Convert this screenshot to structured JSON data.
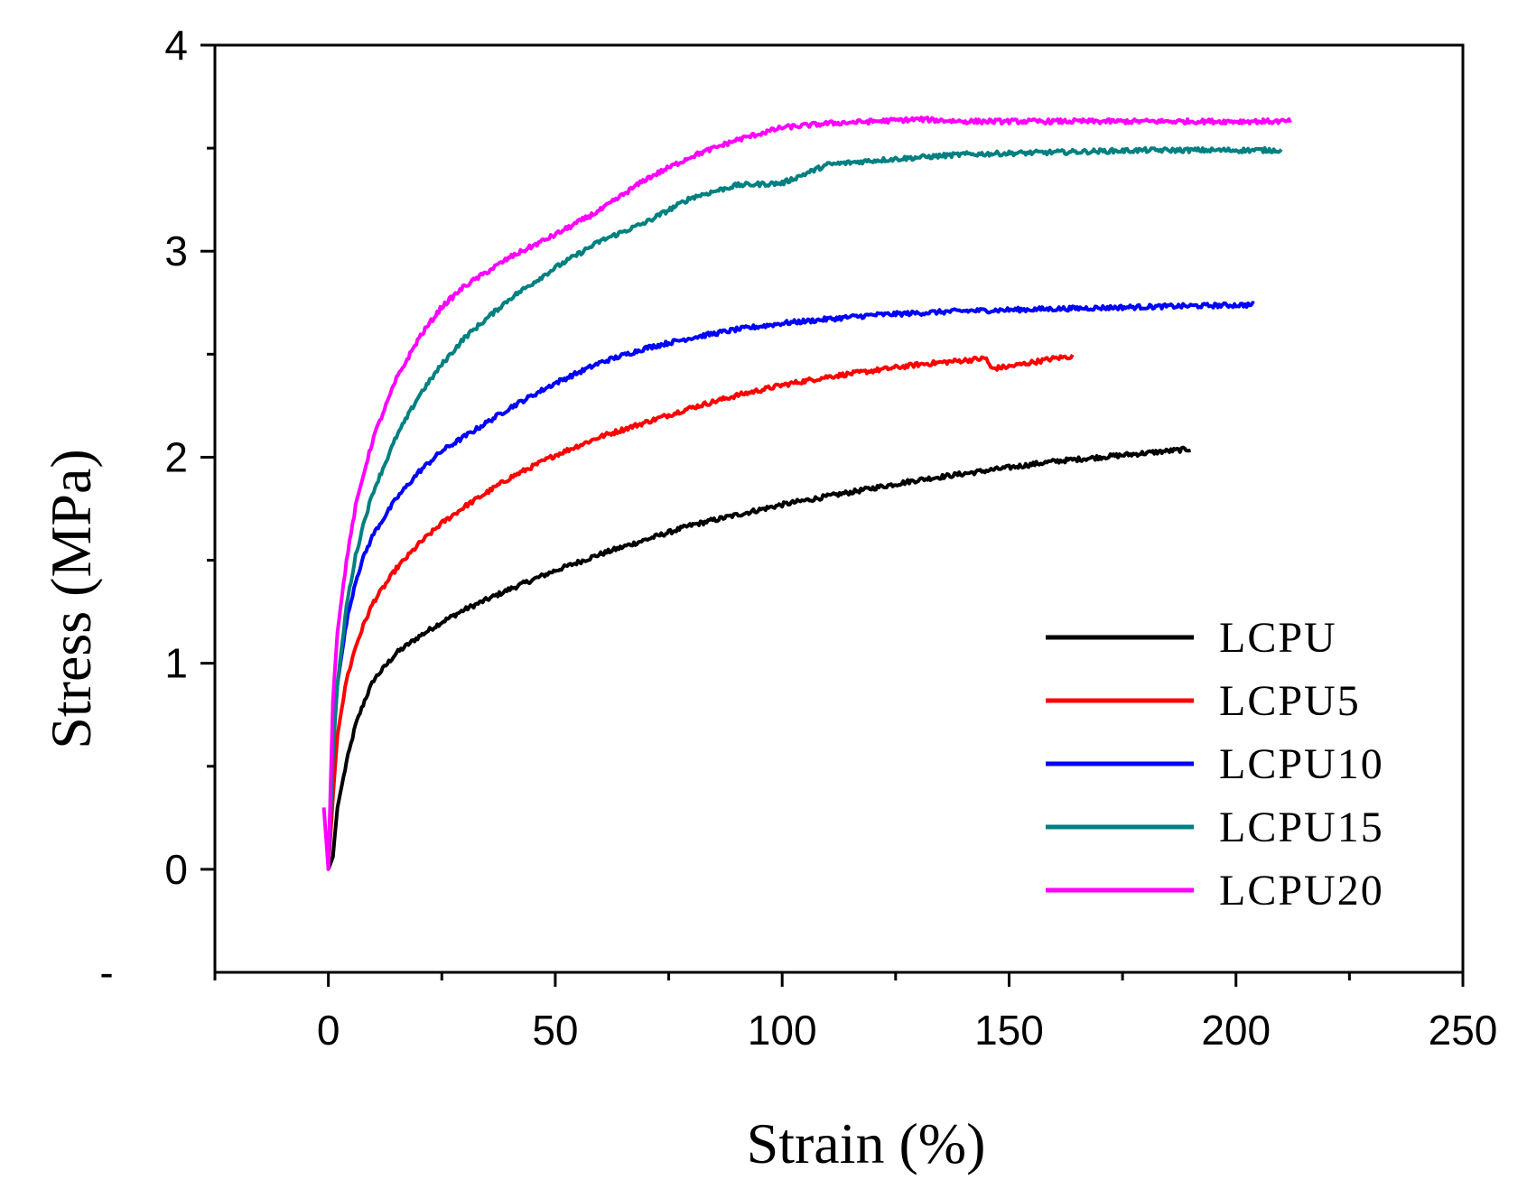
{
  "chart_data": {
    "type": "line",
    "title": "",
    "xlabel": "Strain (%)",
    "ylabel": "Stress (MPa)",
    "xlim": [
      -25,
      250
    ],
    "ylim": [
      -0.5,
      4
    ],
    "x_major_ticks": [
      0,
      50,
      100,
      150,
      200,
      250
    ],
    "x_minor_ticks": [
      -25,
      25,
      75,
      125,
      175,
      225
    ],
    "y_major_ticks": [
      0,
      1,
      2,
      3,
      4
    ],
    "y_minor_ticks": [
      0.5,
      1.5,
      2.5,
      3.5
    ],
    "x_tick_labels": [
      "0",
      "50",
      "100",
      "150",
      "200",
      "250"
    ],
    "y_tick_labels": [
      "0",
      "1",
      "2",
      "3",
      "4"
    ],
    "y_extra_label": {
      "value": -0.5,
      "text": "-"
    },
    "grid": false,
    "legend_position": "lower-right",
    "series": [
      {
        "name": "LCPU",
        "color": "#000000",
        "x": [
          0,
          1,
          2,
          4,
          6,
          8,
          10,
          15,
          20,
          25,
          30,
          40,
          50,
          60,
          70,
          80,
          90,
          100,
          110,
          120,
          130,
          140,
          150,
          160,
          170,
          180,
          190
        ],
        "y": [
          0,
          0.06,
          0.3,
          0.52,
          0.7,
          0.82,
          0.92,
          1.05,
          1.13,
          1.2,
          1.26,
          1.36,
          1.45,
          1.53,
          1.6,
          1.67,
          1.72,
          1.77,
          1.81,
          1.85,
          1.89,
          1.92,
          1.95,
          1.98,
          2.0,
          2.02,
          2.04
        ]
      },
      {
        "name": "LCPU5",
        "color": "#ff0000",
        "x": [
          0,
          1,
          2,
          4,
          6,
          8,
          10,
          15,
          20,
          25,
          30,
          40,
          50,
          60,
          70,
          80,
          90,
          100,
          110,
          120,
          130,
          140,
          145,
          146,
          150,
          155,
          160,
          164
        ],
        "y": [
          0,
          0.35,
          0.65,
          0.92,
          1.08,
          1.2,
          1.3,
          1.46,
          1.58,
          1.68,
          1.76,
          1.9,
          2.01,
          2.1,
          2.17,
          2.24,
          2.3,
          2.35,
          2.39,
          2.42,
          2.45,
          2.47,
          2.48,
          2.43,
          2.44,
          2.46,
          2.48,
          2.49
        ]
      },
      {
        "name": "LCPU10",
        "color": "#0000ff",
        "x": [
          0,
          1,
          2,
          4,
          6,
          8,
          10,
          15,
          20,
          25,
          30,
          40,
          50,
          60,
          70,
          80,
          90,
          100,
          110,
          120,
          140,
          160,
          180,
          204
        ],
        "y": [
          0,
          0.6,
          0.9,
          1.2,
          1.4,
          1.53,
          1.63,
          1.8,
          1.93,
          2.03,
          2.1,
          2.24,
          2.36,
          2.46,
          2.53,
          2.58,
          2.62,
          2.65,
          2.67,
          2.69,
          2.71,
          2.72,
          2.73,
          2.74
        ]
      },
      {
        "name": "LCPU15",
        "color": "#008080",
        "x": [
          0,
          1,
          2,
          4,
          6,
          8,
          10,
          15,
          20,
          25,
          30,
          40,
          50,
          60,
          70,
          80,
          90,
          100,
          110,
          120,
          140,
          160,
          180,
          210
        ],
        "y": [
          0,
          0.55,
          0.9,
          1.28,
          1.52,
          1.7,
          1.84,
          2.1,
          2.3,
          2.45,
          2.58,
          2.77,
          2.92,
          3.05,
          3.14,
          3.26,
          3.32,
          3.33,
          3.42,
          3.44,
          3.47,
          3.48,
          3.49,
          3.49
        ]
      },
      {
        "name": "LCPU20",
        "color": "#ff00ff",
        "x": [
          -1,
          0,
          1,
          2,
          4,
          6,
          8,
          10,
          15,
          20,
          25,
          30,
          40,
          50,
          60,
          70,
          80,
          90,
          100,
          110,
          120,
          130,
          140,
          160,
          180,
          212
        ],
        "y": [
          0.3,
          0,
          0.82,
          1.15,
          1.5,
          1.76,
          1.94,
          2.1,
          2.38,
          2.58,
          2.73,
          2.83,
          2.97,
          3.08,
          3.2,
          3.35,
          3.46,
          3.54,
          3.6,
          3.62,
          3.63,
          3.64,
          3.63,
          3.63,
          3.63,
          3.63
        ]
      }
    ]
  }
}
